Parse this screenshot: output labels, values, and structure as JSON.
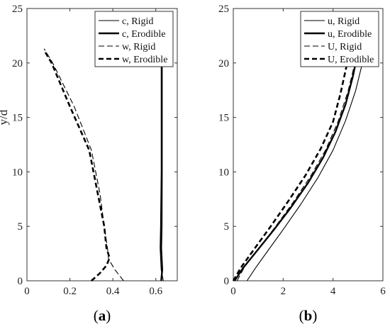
{
  "chart_data": [
    {
      "type": "line",
      "panel_label": {
        "open": "(",
        "letter": "a",
        "close": ")"
      },
      "ylabel": "y/d",
      "xlim": [
        0,
        0.7
      ],
      "ylim": [
        0,
        25
      ],
      "xticks": [
        0,
        0.2,
        0.4,
        0.6
      ],
      "xtick_labels": [
        "0",
        "0.2",
        "0.4",
        "0.6"
      ],
      "yticks": [
        0,
        5,
        10,
        15,
        20,
        25
      ],
      "ytick_labels": [
        "0",
        "5",
        "10",
        "15",
        "20",
        "25"
      ],
      "legend_position": "top-right",
      "series": [
        {
          "name": "c, Rigid",
          "style": "solid-thin",
          "x": [
            0.635,
            0.625,
            0.62,
            0.622,
            0.625,
            0.625,
            0.625,
            0.625
          ],
          "y": [
            0,
            1,
            3,
            5,
            10,
            15,
            20,
            21.3
          ]
        },
        {
          "name": "c, Erodible",
          "style": "solid-thick",
          "x": [
            0.625,
            0.63,
            0.625,
            0.627,
            0.628,
            0.628,
            0.628,
            0.628
          ],
          "y": [
            0,
            1,
            3,
            5,
            10,
            15,
            20,
            21.3
          ]
        },
        {
          "name": "w, Rigid",
          "style": "dashed-thin",
          "x": [
            0.45,
            0.41,
            0.38,
            0.375,
            0.36,
            0.34,
            0.3,
            0.22,
            0.12,
            0.08
          ],
          "y": [
            0,
            1,
            2,
            3,
            5,
            8,
            12,
            16,
            20,
            21.3
          ]
        },
        {
          "name": "w, Erodible",
          "style": "dashed-thick",
          "x": [
            0.3,
            0.34,
            0.37,
            0.385,
            0.37,
            0.36,
            0.33,
            0.29,
            0.2,
            0.115,
            0.085
          ],
          "y": [
            0,
            0.7,
            1.4,
            2.1,
            3,
            5,
            8,
            12,
            16,
            20,
            21
          ]
        }
      ]
    },
    {
      "type": "line",
      "panel_label": {
        "open": "(",
        "letter": "b",
        "close": ")"
      },
      "ylabel": "",
      "xlim": [
        0,
        6
      ],
      "ylim": [
        0,
        25
      ],
      "xticks": [
        0,
        2,
        4,
        6
      ],
      "xtick_labels": [
        "0",
        "2",
        "4",
        "6"
      ],
      "yticks": [
        0,
        5,
        10,
        15,
        20,
        25
      ],
      "ytick_labels": [
        "0",
        "5",
        "10",
        "15",
        "20",
        "25"
      ],
      "legend_position": "top-right",
      "series": [
        {
          "name": "u, Rigid",
          "style": "solid-thin",
          "x": [
            0.55,
            0.9,
            1.4,
            2.0,
            2.7,
            3.4,
            4.0,
            4.5,
            4.9,
            5.2,
            5.25
          ],
          "y": [
            0,
            1.2,
            2.8,
            4.7,
            7.0,
            9.5,
            12.0,
            14.7,
            17.4,
            20.2,
            21.3
          ]
        },
        {
          "name": "u, Erodible",
          "style": "solid-thick",
          "x": [
            0.05,
            0.4,
            1.0,
            1.6,
            2.3,
            3.0,
            3.6,
            4.1,
            4.5,
            4.8,
            4.95,
            4.95
          ],
          "y": [
            0,
            1.2,
            2.9,
            4.6,
            6.7,
            9.0,
            11.3,
            13.7,
            16.2,
            18.8,
            20.5,
            21.3
          ]
        },
        {
          "name": "U, Rigid",
          "style": "dashed-thin",
          "x": [
            0.15,
            0.5,
            1.1,
            1.7,
            2.4,
            3.1,
            3.7,
            4.2,
            4.6,
            4.9,
            5.0
          ],
          "y": [
            0,
            1.5,
            3.2,
            5.0,
            7.2,
            9.6,
            12.0,
            14.6,
            17.4,
            20.2,
            21.3
          ]
        },
        {
          "name": "U, Erodible",
          "style": "dashed-thick",
          "x": [
            0.0,
            0.3,
            0.9,
            1.5,
            2.2,
            2.9,
            3.5,
            4.0,
            4.3,
            4.55,
            4.6
          ],
          "y": [
            0,
            1.2,
            3.1,
            5.0,
            7.3,
            9.7,
            12.1,
            14.6,
            17.2,
            19.8,
            21.0
          ]
        }
      ]
    }
  ]
}
